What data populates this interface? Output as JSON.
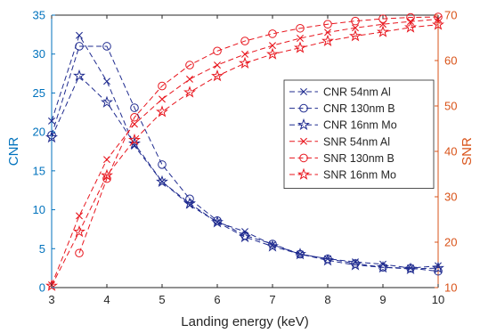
{
  "chart_data": {
    "type": "line",
    "xlabel": "Landing energy  (keV)",
    "ylabel_left": "CNR",
    "ylabel_right": "SNR",
    "xlim": [
      3,
      10
    ],
    "ylim_left": [
      0,
      35
    ],
    "ylim_right": [
      10,
      70
    ],
    "x_ticks": [
      "3",
      "4",
      "5",
      "6",
      "7",
      "8",
      "9",
      "10"
    ],
    "y_ticks_left": [
      "0",
      "5",
      "10",
      "15",
      "20",
      "25",
      "30",
      "35"
    ],
    "y_ticks_right": [
      "10",
      "20",
      "30",
      "40",
      "50",
      "60",
      "70"
    ],
    "colors": {
      "left_axis": "#0072BD",
      "right_axis": "#D95319",
      "cnr_series": "#1F2B8F",
      "snr_series": "#E8161E"
    },
    "legend_position": "center-right",
    "series": [
      {
        "name": "CNR  54nm Al",
        "axis": "left",
        "marker": "x",
        "x": [
          3,
          3.5,
          4,
          4.5,
          5,
          5.5,
          6,
          6.5,
          7,
          7.5,
          8,
          8.5,
          9,
          9.5,
          10
        ],
        "values": [
          21.4,
          32.4,
          26.5,
          18.2,
          13.6,
          10.6,
          8.4,
          7.2,
          5.5,
          4.3,
          3.7,
          3.3,
          3.0,
          2.5,
          2.8
        ]
      },
      {
        "name": "CNR 130nm B",
        "axis": "left",
        "marker": "o",
        "x": [
          3,
          3.5,
          4,
          4.5,
          5,
          5.5,
          6,
          6.5,
          7,
          7.5,
          8,
          8.5,
          9,
          9.5,
          10
        ],
        "values": [
          19.6,
          31.0,
          31.0,
          23.1,
          15.8,
          11.4,
          8.6,
          6.7,
          5.6,
          4.3,
          3.7,
          3.1,
          2.6,
          2.5,
          2.1
        ]
      },
      {
        "name": "CNR 16nm Mo",
        "axis": "left",
        "marker": "star",
        "x": [
          3,
          3.5,
          4,
          4.5,
          5,
          5.5,
          6,
          6.5,
          7,
          7.5,
          8,
          8.5,
          9,
          9.5,
          10
        ],
        "values": [
          19.3,
          27.2,
          23.8,
          18.5,
          13.6,
          10.8,
          8.4,
          6.5,
          5.3,
          4.3,
          3.5,
          2.9,
          2.6,
          2.4,
          2.5
        ]
      },
      {
        "name": "SNR 54nm Al",
        "axis": "right",
        "marker": "x",
        "x": [
          3,
          3.5,
          4,
          4.5,
          5,
          5.5,
          6,
          6.5,
          7,
          7.5,
          8,
          8.5,
          9,
          9.5,
          10
        ],
        "values": [
          10.6,
          25.8,
          38.2,
          46.0,
          51.5,
          55.9,
          59.0,
          61.4,
          63.3,
          64.9,
          66.2,
          67.2,
          68.0,
          68.6,
          69.1
        ]
      },
      {
        "name": "SNR 130nm B",
        "axis": "right",
        "marker": "o",
        "x": [
          3.5,
          4,
          4.5,
          5,
          5.5,
          6,
          6.5,
          7,
          7.5,
          8,
          8.5,
          9,
          9.5,
          10
        ],
        "values": [
          17.6,
          34.0,
          47.5,
          54.4,
          59.0,
          62.1,
          64.3,
          65.9,
          67.1,
          68.0,
          68.7,
          69.2,
          69.5,
          69.6
        ]
      },
      {
        "name": "SNR 16nm Mo",
        "axis": "right",
        "marker": "star",
        "x": [
          3,
          3.5,
          4,
          4.5,
          5,
          5.5,
          6,
          6.5,
          7,
          7.5,
          8,
          8.5,
          9,
          9.5,
          10
        ],
        "values": [
          10.4,
          22.3,
          34.7,
          42.5,
          48.7,
          53.0,
          56.6,
          59.4,
          61.4,
          62.8,
          64.3,
          65.4,
          66.3,
          67.3,
          67.9
        ]
      }
    ]
  }
}
